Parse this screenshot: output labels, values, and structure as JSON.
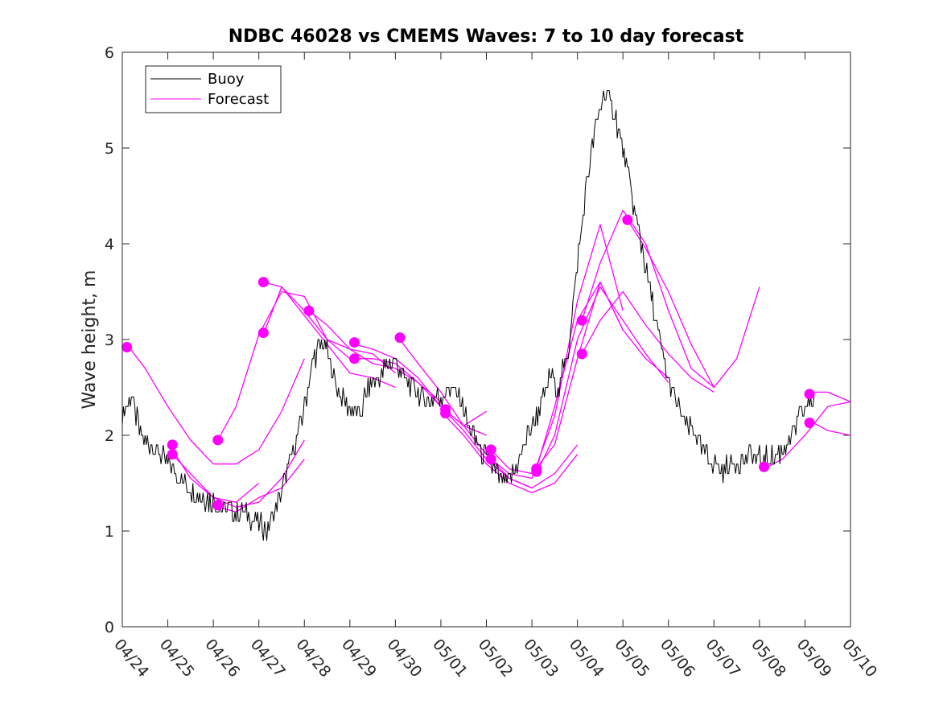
{
  "chart_data": {
    "type": "line",
    "title": "NDBC 46028 vs CMEMS Waves: 7 to 10 day forecast",
    "xlabel": "",
    "ylabel": "Wave height, m",
    "x_tick_labels": [
      "04/24",
      "04/25",
      "04/26",
      "04/27",
      "04/28",
      "04/29",
      "04/30",
      "05/01",
      "05/02",
      "05/03",
      "05/04",
      "05/05",
      "05/06",
      "05/07",
      "05/08",
      "05/09",
      "05/10"
    ],
    "y_ticks": [
      0,
      1,
      2,
      3,
      4,
      5,
      6
    ],
    "xlim": [
      0,
      16
    ],
    "ylim": [
      0,
      6
    ],
    "grid": false,
    "legend": {
      "position": "top-left",
      "entries": [
        {
          "label": "Buoy",
          "color": "#000000"
        },
        {
          "label": "Forecast",
          "color": "#ff00ff"
        }
      ]
    },
    "colors": {
      "buoy": "#000000",
      "forecast": "#ff00ff"
    },
    "buoy": {
      "name": "Buoy",
      "x": [
        0.0,
        0.2,
        0.4,
        0.6,
        0.8,
        1.0,
        1.2,
        1.4,
        1.6,
        1.8,
        2.0,
        2.2,
        2.4,
        2.6,
        2.8,
        3.0,
        3.2,
        3.4,
        3.6,
        3.8,
        4.0,
        4.2,
        4.4,
        4.6,
        4.8,
        5.0,
        5.2,
        5.4,
        5.6,
        5.8,
        6.0,
        6.2,
        6.4,
        6.6,
        6.8,
        7.0,
        7.2,
        7.4,
        7.6,
        7.8,
        8.0,
        8.2,
        8.4,
        8.6,
        8.8,
        9.0,
        9.2,
        9.4,
        9.6,
        9.8,
        10.0,
        10.2,
        10.4,
        10.6,
        10.8,
        11.0,
        11.2,
        11.4,
        11.6,
        11.8,
        12.0,
        12.2,
        12.4,
        12.6,
        12.8,
        13.0,
        13.2,
        13.4,
        13.6,
        13.8,
        14.0,
        14.2,
        14.4,
        14.6,
        14.8,
        15.0,
        15.2
      ],
      "y": [
        2.2,
        2.4,
        2.0,
        1.9,
        1.8,
        1.7,
        1.6,
        1.5,
        1.4,
        1.35,
        1.3,
        1.25,
        1.2,
        1.2,
        1.15,
        1.1,
        1.0,
        1.3,
        1.6,
        1.9,
        2.3,
        2.8,
        3.0,
        2.7,
        2.4,
        2.3,
        2.2,
        2.5,
        2.6,
        2.7,
        2.8,
        2.6,
        2.5,
        2.4,
        2.35,
        2.4,
        2.5,
        2.4,
        2.1,
        1.9,
        1.75,
        1.6,
        1.5,
        1.6,
        1.85,
        2.1,
        2.3,
        2.6,
        2.5,
        2.9,
        3.8,
        4.6,
        5.2,
        5.6,
        5.4,
        5.0,
        4.5,
        4.0,
        3.5,
        3.0,
        2.6,
        2.3,
        2.1,
        2.0,
        1.8,
        1.7,
        1.65,
        1.7,
        1.75,
        1.8,
        1.75,
        1.75,
        1.8,
        1.9,
        2.1,
        2.3,
        2.4
      ]
    },
    "forecast_series": [
      {
        "x": [
          0.1,
          0.5,
          1.0,
          1.5,
          2.0,
          2.5,
          3.0,
          3.5,
          4.0
        ],
        "y": [
          2.95,
          2.7,
          2.3,
          1.95,
          1.7,
          1.7,
          1.85,
          2.25,
          2.8
        ]
      },
      {
        "x": [
          1.1,
          1.5,
          2.0,
          2.5,
          3.0,
          3.5,
          4.0
        ],
        "y": [
          1.85,
          1.55,
          1.35,
          1.25,
          1.3,
          1.55,
          1.95
        ]
      },
      {
        "x": [
          1.1,
          1.5,
          2.0,
          2.5,
          3.0
        ],
        "y": [
          1.8,
          1.6,
          1.35,
          1.3,
          1.5
        ]
      },
      {
        "x": [
          2.1,
          2.5,
          3.0,
          3.5,
          4.0
        ],
        "y": [
          1.25,
          1.2,
          1.35,
          1.45,
          1.75
        ]
      },
      {
        "x": [
          2.1,
          2.5,
          3.0,
          3.5,
          4.0,
          4.5,
          5.0
        ],
        "y": [
          1.95,
          2.3,
          3.05,
          3.5,
          3.45,
          3.0,
          2.8
        ]
      },
      {
        "x": [
          3.1,
          3.5,
          4.0,
          4.5,
          5.0,
          5.5,
          6.0
        ],
        "y": [
          3.6,
          3.55,
          3.3,
          3.0,
          2.9,
          2.85,
          2.65
        ]
      },
      {
        "x": [
          3.1,
          3.5,
          4.0,
          4.5,
          5.0,
          5.5,
          6.0
        ],
        "y": [
          3.05,
          3.55,
          3.25,
          2.95,
          2.65,
          2.6,
          2.5
        ]
      },
      {
        "x": [
          4.1,
          4.5,
          5.0,
          5.5,
          6.0,
          6.5,
          7.0
        ],
        "y": [
          3.3,
          3.15,
          2.9,
          2.75,
          2.7,
          2.55,
          2.35
        ]
      },
      {
        "x": [
          5.1,
          5.5,
          6.0,
          6.5,
          7.0,
          7.5,
          8.0
        ],
        "y": [
          2.95,
          2.9,
          2.8,
          2.6,
          2.3,
          2.1,
          2.25
        ]
      },
      {
        "x": [
          5.1,
          5.5,
          6.0,
          6.5,
          7.0,
          7.5,
          8.0
        ],
        "y": [
          2.8,
          2.8,
          2.75,
          2.55,
          2.3,
          2.1,
          2.0
        ]
      },
      {
        "x": [
          6.1,
          6.5,
          7.0,
          7.5,
          8.0,
          8.5,
          9.0
        ],
        "y": [
          3.0,
          2.75,
          2.45,
          2.1,
          1.8,
          1.55,
          1.45
        ]
      },
      {
        "x": [
          7.1,
          7.5,
          8.0,
          8.5,
          9.0,
          9.5,
          10.0
        ],
        "y": [
          2.25,
          2.05,
          1.75,
          1.55,
          1.45,
          1.6,
          1.9
        ]
      },
      {
        "x": [
          7.1,
          7.5,
          8.0,
          8.5,
          9.0,
          9.5,
          10.0
        ],
        "y": [
          2.2,
          2.0,
          1.7,
          1.5,
          1.4,
          1.5,
          1.8
        ]
      },
      {
        "x": [
          8.1,
          8.5,
          9.0,
          9.5,
          10.0,
          10.5,
          11.0
        ],
        "y": [
          1.85,
          1.65,
          1.6,
          1.9,
          2.8,
          3.6,
          3.1
        ]
      },
      {
        "x": [
          8.1,
          8.5,
          9.0,
          9.5,
          10.0,
          10.5,
          11.0
        ],
        "y": [
          1.75,
          1.6,
          1.55,
          2.2,
          3.4,
          4.2,
          3.3
        ]
      },
      {
        "x": [
          9.1,
          9.5,
          10.0,
          10.5,
          11.0,
          11.5,
          12.0
        ],
        "y": [
          1.65,
          2.3,
          3.2,
          3.6,
          3.1,
          2.8,
          2.6
        ]
      },
      {
        "x": [
          9.1,
          9.5,
          10.0,
          10.5,
          11.0,
          11.5,
          12.0
        ],
        "y": [
          1.6,
          2.0,
          3.0,
          3.55,
          3.2,
          2.85,
          2.55
        ]
      },
      {
        "x": [
          10.1,
          10.5,
          11.0,
          11.5,
          12.0,
          12.5,
          13.0
        ],
        "y": [
          3.2,
          3.8,
          4.35,
          4.0,
          3.3,
          2.7,
          2.5
        ]
      },
      {
        "x": [
          10.1,
          10.5,
          11.0,
          11.5,
          12.0,
          12.5,
          13.0
        ],
        "y": [
          2.85,
          3.2,
          3.5,
          3.15,
          2.85,
          2.6,
          2.45
        ]
      },
      {
        "x": [
          11.1,
          11.5,
          12.0,
          12.5,
          13.0,
          13.5,
          14.0
        ],
        "y": [
          4.25,
          3.95,
          3.5,
          2.95,
          2.5,
          2.8,
          3.55
        ]
      },
      {
        "x": [
          14.1,
          14.5,
          15.0,
          15.5,
          16.0
        ],
        "y": [
          1.65,
          1.75,
          2.0,
          2.3,
          2.35
        ]
      },
      {
        "x": [
          15.1,
          15.5,
          16.0
        ],
        "y": [
          2.45,
          2.45,
          2.35
        ]
      },
      {
        "x": [
          15.1,
          15.5,
          16.0
        ],
        "y": [
          2.15,
          2.05,
          2.0
        ]
      }
    ],
    "forecast_start_points": [
      {
        "x": 0.1,
        "y": 2.92
      },
      {
        "x": 1.1,
        "y": 1.9
      },
      {
        "x": 1.1,
        "y": 1.8
      },
      {
        "x": 2.1,
        "y": 1.95
      },
      {
        "x": 2.1,
        "y": 1.27
      },
      {
        "x": 3.1,
        "y": 3.6
      },
      {
        "x": 3.1,
        "y": 3.07
      },
      {
        "x": 4.1,
        "y": 3.3
      },
      {
        "x": 5.1,
        "y": 2.97
      },
      {
        "x": 5.1,
        "y": 2.8
      },
      {
        "x": 6.1,
        "y": 3.02
      },
      {
        "x": 7.1,
        "y": 2.27
      },
      {
        "x": 7.1,
        "y": 2.23
      },
      {
        "x": 8.1,
        "y": 1.85
      },
      {
        "x": 8.1,
        "y": 1.75
      },
      {
        "x": 9.1,
        "y": 1.65
      },
      {
        "x": 9.1,
        "y": 1.62
      },
      {
        "x": 10.1,
        "y": 3.2
      },
      {
        "x": 10.1,
        "y": 2.85
      },
      {
        "x": 11.1,
        "y": 4.25
      },
      {
        "x": 14.1,
        "y": 1.67
      },
      {
        "x": 15.1,
        "y": 2.43
      },
      {
        "x": 15.1,
        "y": 2.13
      }
    ]
  }
}
